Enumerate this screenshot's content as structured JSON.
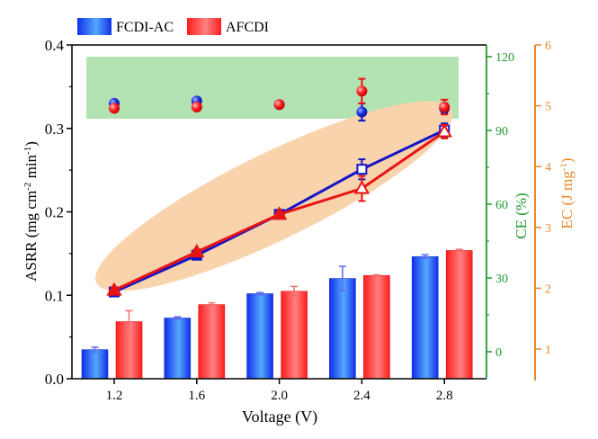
{
  "chart_data": {
    "type": "bar",
    "title": "",
    "categories": [
      "1.2",
      "1.6",
      "2.0",
      "2.4",
      "2.8"
    ],
    "x": [
      1.2,
      1.6,
      2.0,
      2.4,
      2.8
    ],
    "xlabel": "Voltage (V)",
    "legend": {
      "placement": "top-left",
      "entries": [
        "FCDI-AC",
        "AFCDI"
      ]
    },
    "colors": {
      "FCDI-AC": "#1a3cff",
      "AFCDI": "#ff2a2a",
      "ce_axis": "#1f9a2e",
      "ec_axis": "#e8892e",
      "ce_band": "#b3e3b3",
      "asrr_ellipse": "#f9d3ac"
    },
    "axes": {
      "left": {
        "label": "ASRR (mg cm-2 min-1)",
        "label_main": "ASRR (mg cm",
        "sup1": "-2",
        "mid": " min",
        "sup2": "-1",
        "end": ")",
        "range": [
          0,
          0.4
        ],
        "ticks": [
          "0.0",
          "0.1",
          "0.2",
          "0.3",
          "0.4"
        ]
      },
      "right_ce": {
        "label": "CE (%)",
        "range": [
          -10,
          125
        ],
        "ticks": [
          "0",
          "30",
          "60",
          "90",
          "120"
        ]
      },
      "right_ec": {
        "label": "EC (J mg-1)",
        "label_main": "EC (J mg",
        "sup": "-1",
        "end": ")",
        "range": [
          0.4,
          6
        ],
        "ticks": [
          "1",
          "2",
          "3",
          "4",
          "5",
          "6"
        ]
      }
    },
    "series": [
      {
        "name": "FCDI-AC",
        "kind": "bar",
        "axis": "EC",
        "values": [
          0.99,
          1.51,
          1.91,
          2.16,
          2.52
        ],
        "errors": [
          0.04,
          0.02,
          0.02,
          0.2,
          0.03
        ]
      },
      {
        "name": "AFCDI",
        "kind": "bar",
        "axis": "EC",
        "values": [
          1.45,
          1.73,
          1.95,
          2.21,
          2.62
        ],
        "errors": [
          0.18,
          0.03,
          0.08,
          0.01,
          0.02
        ]
      },
      {
        "name": "FCDI-AC",
        "kind": "line",
        "marker": "square",
        "axis": "ASRR",
        "values": [
          0.104,
          0.148,
          0.197,
          0.251,
          0.298
        ],
        "errors": [
          0.003,
          0.003,
          0.003,
          0.012,
          0.008
        ]
      },
      {
        "name": "AFCDI",
        "kind": "line",
        "marker": "triangle",
        "axis": "ASRR",
        "values": [
          0.106,
          0.152,
          0.197,
          0.228,
          0.296
        ],
        "errors": [
          0.003,
          0.003,
          0.003,
          0.015,
          0.008
        ]
      },
      {
        "name": "FCDI-AC",
        "kind": "scatter",
        "marker": "circle",
        "axis": "CE",
        "values": [
          101,
          102,
          100.5,
          97.5,
          99
        ],
        "errors": [
          1,
          1,
          1,
          3.5,
          2
        ]
      },
      {
        "name": "AFCDI",
        "kind": "scatter",
        "marker": "circle",
        "axis": "CE",
        "values": [
          99,
          99.5,
          100.5,
          106,
          99.5
        ],
        "errors": [
          1,
          1,
          1,
          5,
          3
        ]
      }
    ]
  }
}
